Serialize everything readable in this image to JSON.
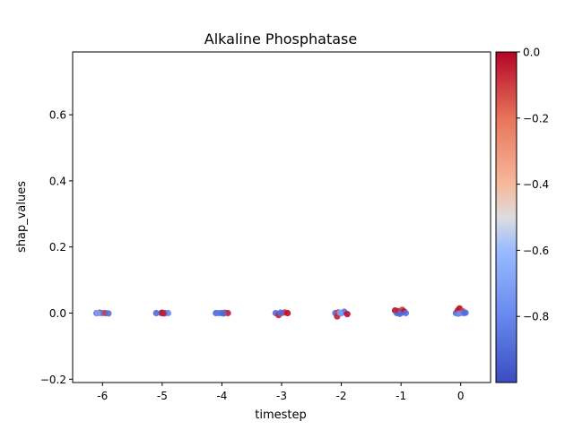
{
  "chart_data": {
    "type": "scatter",
    "title": "Alkaline Phosphatase",
    "xlabel": "timestep",
    "ylabel": "shap_values",
    "xlim": [
      -6.5,
      0.5
    ],
    "ylim": [
      -0.21,
      0.79
    ],
    "xticks": [
      -6,
      -5,
      -4,
      -3,
      -2,
      -1,
      0
    ],
    "xtick_labels": [
      "-6",
      "-5",
      "-4",
      "-3",
      "-2",
      "-1",
      "0"
    ],
    "yticks": [
      -0.2,
      0.0,
      0.2,
      0.4,
      0.6
    ],
    "ytick_labels": [
      "−0.2",
      "0.0",
      "0.2",
      "0.4",
      "0.6"
    ],
    "grid": false,
    "colorbar": {
      "colormap": "coolwarm",
      "range": [
        -1.0,
        0.0
      ],
      "ticks": [
        0.0,
        -0.2,
        -0.4,
        -0.6,
        -0.8
      ],
      "tick_labels": [
        "0.0",
        "−0.2",
        "−0.4",
        "−0.6",
        "−0.8"
      ]
    },
    "points": [
      {
        "x": -6.1,
        "y": 0.0,
        "c": -0.9
      },
      {
        "x": -6.05,
        "y": 0.001,
        "c": -0.05
      },
      {
        "x": -6.0,
        "y": 0.0,
        "c": -0.85
      },
      {
        "x": -5.95,
        "y": 0.0,
        "c": -0.1
      },
      {
        "x": -5.9,
        "y": -0.001,
        "c": -0.88
      },
      {
        "x": -6.08,
        "y": 0.0,
        "c": -0.7
      },
      {
        "x": -5.1,
        "y": 0.0,
        "c": -0.9
      },
      {
        "x": -5.02,
        "y": 0.0,
        "c": -0.85
      },
      {
        "x": -5.0,
        "y": 0.001,
        "c": -0.02
      },
      {
        "x": -4.95,
        "y": 0.0,
        "c": -0.9
      },
      {
        "x": -4.9,
        "y": 0.0,
        "c": -0.8
      },
      {
        "x": -4.98,
        "y": -0.001,
        "c": -0.05
      },
      {
        "x": -4.1,
        "y": 0.0,
        "c": -0.9
      },
      {
        "x": -4.05,
        "y": 0.0,
        "c": -0.85
      },
      {
        "x": -4.0,
        "y": 0.0,
        "c": -0.88
      },
      {
        "x": -3.95,
        "y": 0.001,
        "c": -0.1
      },
      {
        "x": -3.9,
        "y": 0.0,
        "c": -0.05
      },
      {
        "x": -3.97,
        "y": -0.001,
        "c": -0.9
      },
      {
        "x": -3.1,
        "y": 0.0,
        "c": -0.9
      },
      {
        "x": -3.05,
        "y": -0.006,
        "c": -0.05
      },
      {
        "x": -3.0,
        "y": 0.0,
        "c": -0.85
      },
      {
        "x": -2.95,
        "y": 0.002,
        "c": -0.1
      },
      {
        "x": -2.9,
        "y": 0.0,
        "c": -0.02
      },
      {
        "x": -3.02,
        "y": 0.001,
        "c": -0.9
      },
      {
        "x": -2.1,
        "y": 0.0,
        "c": -0.9
      },
      {
        "x": -2.07,
        "y": -0.01,
        "c": -0.05
      },
      {
        "x": -2.05,
        "y": 0.002,
        "c": -0.1
      },
      {
        "x": -2.0,
        "y": 0.0,
        "c": -0.85
      },
      {
        "x": -1.95,
        "y": 0.004,
        "c": -0.88
      },
      {
        "x": -1.9,
        "y": -0.003,
        "c": -0.02
      },
      {
        "x": -2.02,
        "y": 0.001,
        "c": -0.7
      },
      {
        "x": -1.1,
        "y": 0.008,
        "c": -0.02
      },
      {
        "x": -1.07,
        "y": 0.0,
        "c": -0.9
      },
      {
        "x": -1.05,
        "y": 0.006,
        "c": -0.05
      },
      {
        "x": -1.0,
        "y": 0.0,
        "c": -0.85
      },
      {
        "x": -0.98,
        "y": 0.01,
        "c": -0.1
      },
      {
        "x": -0.95,
        "y": 0.005,
        "c": -0.02
      },
      {
        "x": -0.92,
        "y": 0.0,
        "c": -0.88
      },
      {
        "x": -1.02,
        "y": -0.002,
        "c": -0.9
      },
      {
        "x": -0.08,
        "y": 0.0,
        "c": -0.9
      },
      {
        "x": -0.05,
        "y": 0.008,
        "c": -0.05
      },
      {
        "x": -0.02,
        "y": 0.014,
        "c": -0.02
      },
      {
        "x": 0.0,
        "y": 0.0,
        "c": -0.7
      },
      {
        "x": 0.03,
        "y": 0.006,
        "c": -0.1
      },
      {
        "x": 0.05,
        "y": 0.0,
        "c": -0.85
      },
      {
        "x": 0.08,
        "y": 0.001,
        "c": -0.9
      },
      {
        "x": -0.04,
        "y": -0.002,
        "c": -0.8
      }
    ]
  }
}
